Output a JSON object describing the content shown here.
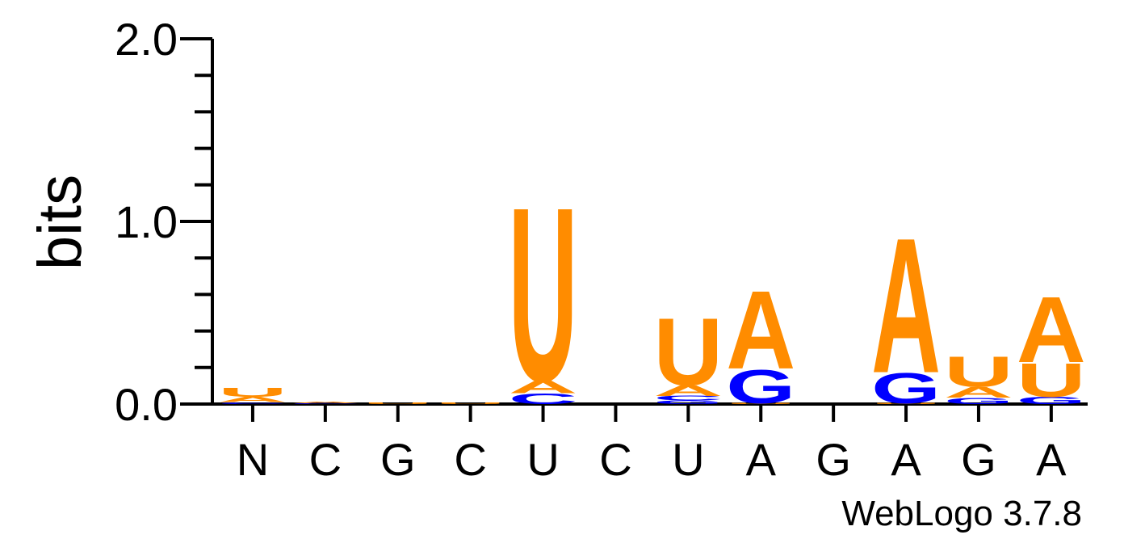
{
  "chart_data": {
    "type": "sequence_logo",
    "ylabel": "bits",
    "ylim": [
      0,
      2
    ],
    "y_ticks": [
      "0.0",
      "1.0",
      "2.0"
    ],
    "x_tick_labels": [
      "N",
      "C",
      "G",
      "C",
      "U",
      "C",
      "U",
      "A",
      "G",
      "A",
      "G",
      "A"
    ],
    "footer": "WebLogo 3.7.8",
    "colors": {
      "A": "#ff8c00",
      "U": "#ff8c00",
      "G": "#0000ff",
      "C": "#0000ff"
    },
    "positions": [
      {
        "stack": [
          {
            "base": "C",
            "bits": 0.01
          },
          {
            "base": "A",
            "bits": 0.03
          },
          {
            "base": "U",
            "bits": 0.05
          }
        ]
      },
      {
        "stack": [
          {
            "base": "C",
            "bits": 0.005
          },
          {
            "base": "A",
            "bits": 0.01
          }
        ]
      },
      {
        "stack": [
          {
            "base": "U",
            "bits": 0.01
          }
        ]
      },
      {
        "stack": [
          {
            "base": "U",
            "bits": 0.01
          }
        ]
      },
      {
        "stack": [
          {
            "base": "C",
            "bits": 0.06
          },
          {
            "base": "A",
            "bits": 0.07
          },
          {
            "base": "U",
            "bits": 0.98
          }
        ]
      },
      {
        "stack": []
      },
      {
        "stack": [
          {
            "base": "G",
            "bits": 0.02
          },
          {
            "base": "C",
            "bits": 0.025
          },
          {
            "base": "A",
            "bits": 0.06
          },
          {
            "base": "U",
            "bits": 0.38
          }
        ]
      },
      {
        "stack": [
          {
            "base": "U",
            "bits": 0.005
          },
          {
            "base": "G",
            "bits": 0.19
          },
          {
            "base": "A",
            "bits": 0.44
          }
        ]
      },
      {
        "stack": []
      },
      {
        "stack": [
          {
            "base": "U",
            "bits": 0.005
          },
          {
            "base": "G",
            "bits": 0.17
          },
          {
            "base": "A",
            "bits": 0.76
          }
        ]
      },
      {
        "stack": [
          {
            "base": "G",
            "bits": 0.035
          },
          {
            "base": "A",
            "bits": 0.06
          },
          {
            "base": "U",
            "bits": 0.17
          }
        ]
      },
      {
        "stack": [
          {
            "base": "G",
            "bits": 0.04
          },
          {
            "base": "U",
            "bits": 0.19
          },
          {
            "base": "A",
            "bits": 0.37
          }
        ]
      }
    ]
  }
}
